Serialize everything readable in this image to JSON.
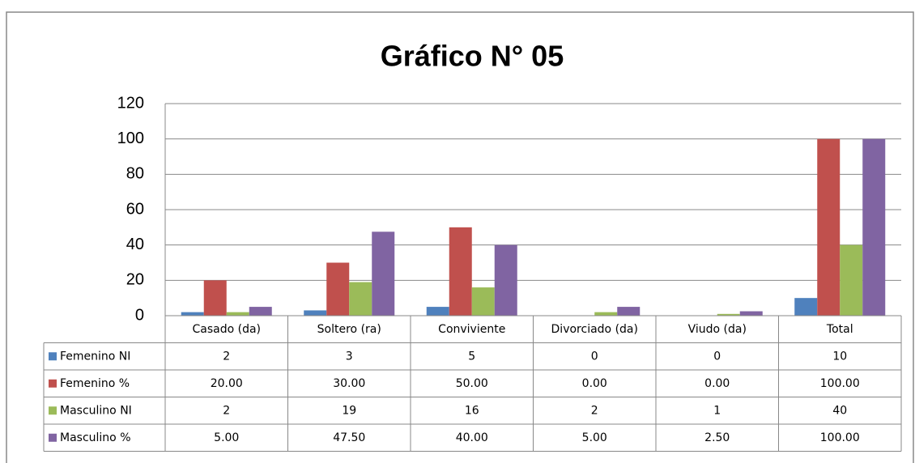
{
  "chart_data": {
    "type": "bar",
    "title": "Gráfico N° 05",
    "categories": [
      "Casado (da)",
      "Soltero (ra)",
      "Conviviente",
      "Divorciado (da)",
      "Viudo (da)",
      "Total"
    ],
    "series": [
      {
        "name": "Femenino NI",
        "color": "#4f81bd",
        "values": [
          2,
          3,
          5,
          0,
          0,
          10
        ]
      },
      {
        "name": "Femenino %",
        "color": "#c0504d",
        "values": [
          20,
          30,
          50,
          0,
          0,
          100
        ],
        "value_labels": [
          "20.00",
          "30.00",
          "50.00",
          "0.00",
          "0.00",
          "100.00"
        ]
      },
      {
        "name": "Masculino NI",
        "color": "#9bbb59",
        "values": [
          2,
          19,
          16,
          2,
          1,
          40
        ]
      },
      {
        "name": "Masculino %",
        "color": "#8064a2",
        "values": [
          5,
          47.5,
          40,
          5,
          2.5,
          100
        ],
        "value_labels": [
          "5.00",
          "47.50",
          "40.00",
          "5.00",
          "2.50",
          "100.00"
        ]
      }
    ],
    "ylim": [
      0,
      120
    ],
    "yticks": [
      0,
      20,
      40,
      60,
      80,
      100,
      120
    ],
    "grid": true
  }
}
